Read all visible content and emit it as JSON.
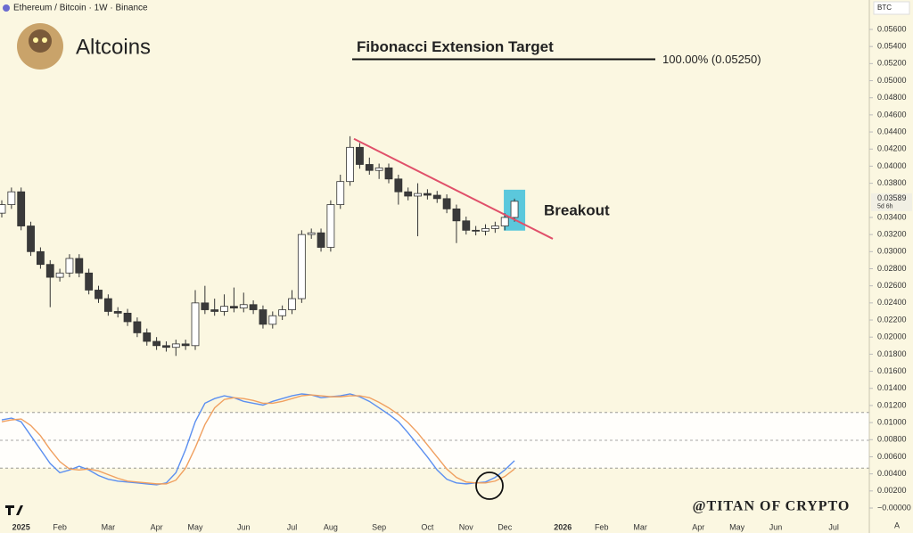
{
  "header": {
    "symbol": "Ethereum / Bitcoin · 1W · Binance",
    "title": "Altcoins",
    "currency": "BTC",
    "scale_mode": "A",
    "watermark": "@TITAN OF CRYPTO"
  },
  "chart_data": {
    "type": "candlestick",
    "annotations": {
      "fib_title": "Fibonacci Extension Target",
      "fib_level": {
        "value": 0.0525,
        "label": "100.00% (0.05250)"
      },
      "breakout": "Breakout",
      "trendline": {
        "values": [
          0.0432,
          0.0315
        ],
        "color": "#e0506a"
      },
      "breakout_color": "#5bc8dc"
    },
    "last_price": {
      "value": 0.03589,
      "label": "0.03589"
    },
    "countdown": "5d 6h",
    "categories": [
      null,
      null,
      "2025",
      null,
      null,
      null,
      "Feb",
      null,
      null,
      null,
      null,
      "Mar",
      null,
      null,
      null,
      null,
      "Apr",
      null,
      null,
      null,
      "May",
      null,
      null,
      null,
      null,
      "Jun",
      null,
      null,
      null,
      null,
      "Jul",
      null,
      null,
      null,
      "Aug",
      null,
      null,
      null,
      null,
      "Sep",
      null,
      null,
      null,
      null,
      "Oct",
      null,
      null,
      null,
      "Nov",
      null,
      null,
      null,
      "Dec",
      null,
      null,
      null,
      null,
      null,
      "2026",
      null,
      null,
      null,
      "Feb",
      null,
      null,
      null,
      "Mar",
      null,
      null,
      null,
      null,
      null,
      "Apr",
      null,
      null,
      null,
      "May",
      null,
      null,
      null,
      "Jun",
      null,
      null,
      null,
      null,
      null,
      "Jul"
    ],
    "open": [
      0.0345,
      0.0355,
      0.037,
      0.033,
      0.03,
      0.0285,
      0.027,
      0.0275,
      0.0292,
      0.0275,
      0.0255,
      0.0245,
      0.023,
      0.0228,
      0.0218,
      0.0205,
      0.0195,
      0.019,
      0.0188,
      0.0192,
      0.019,
      0.024,
      0.0232,
      0.023,
      0.0236,
      0.0234,
      0.0238,
      0.0232,
      0.0215,
      0.0225,
      0.0232,
      0.0245,
      0.032,
      0.0322,
      0.0305,
      0.0355,
      0.0382,
      0.0422,
      0.0402,
      0.0395,
      0.0398,
      0.0385,
      0.037,
      0.0365,
      0.0368,
      0.0366,
      0.0362,
      0.035,
      0.0336,
      0.0325,
      0.0324,
      0.0327,
      0.033,
      0.034,
      null,
      null,
      null,
      null,
      null,
      null,
      null,
      null,
      null,
      null,
      null,
      null,
      null,
      null,
      null,
      null,
      null,
      null,
      null,
      null,
      null,
      null,
      null,
      null,
      null,
      null,
      null,
      null,
      null,
      null,
      null,
      null,
      null
    ],
    "high": [
      0.036,
      0.0375,
      0.0375,
      0.0335,
      0.0305,
      0.029,
      0.028,
      0.0297,
      0.0297,
      0.028,
      0.026,
      0.025,
      0.0235,
      0.0233,
      0.0223,
      0.021,
      0.02,
      0.0195,
      0.0197,
      0.0197,
      0.0255,
      0.026,
      0.0245,
      0.025,
      0.0258,
      0.0252,
      0.0243,
      0.0237,
      0.023,
      0.0237,
      0.0255,
      0.0325,
      0.0327,
      0.0327,
      0.036,
      0.039,
      0.0435,
      0.0427,
      0.041,
      0.0403,
      0.0403,
      0.039,
      0.0375,
      0.038,
      0.0373,
      0.0371,
      0.0367,
      0.0355,
      0.0341,
      0.033,
      0.0332,
      0.0335,
      0.0345,
      0.0362,
      null,
      null,
      null,
      null,
      null,
      null,
      null,
      null,
      null,
      null,
      null,
      null,
      null,
      null,
      null,
      null,
      null,
      null,
      null,
      null,
      null,
      null,
      null,
      null,
      null,
      null,
      null,
      null,
      null,
      null,
      null,
      null,
      null
    ],
    "low": [
      0.034,
      0.035,
      0.0325,
      0.0295,
      0.028,
      0.0235,
      0.0265,
      0.027,
      0.027,
      0.025,
      0.024,
      0.0225,
      0.0223,
      0.0213,
      0.02,
      0.019,
      0.0185,
      0.0183,
      0.0178,
      0.0185,
      0.0185,
      0.0227,
      0.0225,
      0.0225,
      0.0229,
      0.0229,
      0.0227,
      0.021,
      0.021,
      0.022,
      0.0227,
      0.024,
      0.0315,
      0.03,
      0.03,
      0.035,
      0.0377,
      0.0397,
      0.039,
      0.0385,
      0.038,
      0.0355,
      0.036,
      0.0318,
      0.0361,
      0.0357,
      0.0345,
      0.031,
      0.032,
      0.0319,
      0.0319,
      0.0322,
      0.0325,
      0.0335,
      null,
      null,
      null,
      null,
      null,
      null,
      null,
      null,
      null,
      null,
      null,
      null,
      null,
      null,
      null,
      null,
      null,
      null,
      null,
      null,
      null,
      null,
      null,
      null,
      null,
      null,
      null,
      null,
      null,
      null,
      null,
      null,
      null
    ],
    "close": [
      0.0355,
      0.037,
      0.033,
      0.03,
      0.0285,
      0.027,
      0.0275,
      0.0292,
      0.0275,
      0.0255,
      0.0245,
      0.023,
      0.0228,
      0.0218,
      0.0205,
      0.0195,
      0.019,
      0.0188,
      0.0192,
      0.019,
      0.024,
      0.0232,
      0.023,
      0.0236,
      0.0234,
      0.0238,
      0.0232,
      0.0215,
      0.0225,
      0.0232,
      0.0245,
      0.032,
      0.0322,
      0.0305,
      0.0355,
      0.0382,
      0.0422,
      0.0402,
      0.0395,
      0.0398,
      0.0385,
      0.037,
      0.0365,
      0.0368,
      0.0366,
      0.0362,
      0.035,
      0.0336,
      0.0325,
      0.0324,
      0.0327,
      0.033,
      0.034,
      0.03589,
      null,
      null,
      null,
      null,
      null,
      null,
      null,
      null,
      null,
      null,
      null,
      null,
      null,
      null,
      null,
      null,
      null,
      null,
      null,
      null,
      null,
      null,
      null,
      null,
      null,
      null,
      null,
      null,
      null,
      null,
      null,
      null,
      null
    ],
    "up_color": "#ffffff",
    "down_color": "#3a3a3a",
    "ylim": [
      -0.00292,
      0.05944
    ],
    "yticks": [
      {
        "value": 0.056,
        "label": "0.05600"
      },
      {
        "value": 0.054,
        "label": "0.05400"
      },
      {
        "value": 0.052,
        "label": "0.05200"
      },
      {
        "value": 0.05,
        "label": "0.05000"
      },
      {
        "value": 0.048,
        "label": "0.04800"
      },
      {
        "value": 0.046,
        "label": "0.04600"
      },
      {
        "value": 0.044,
        "label": "0.04400"
      },
      {
        "value": 0.042,
        "label": "0.04200"
      },
      {
        "value": 0.04,
        "label": "0.04000"
      },
      {
        "value": 0.038,
        "label": "0.03800"
      },
      {
        "value": 0.034,
        "label": "0.03400"
      },
      {
        "value": 0.032,
        "label": "0.03200"
      },
      {
        "value": 0.03,
        "label": "0.03000"
      },
      {
        "value": 0.028,
        "label": "0.02800"
      },
      {
        "value": 0.026,
        "label": "0.02600"
      },
      {
        "value": 0.024,
        "label": "0.02400"
      },
      {
        "value": 0.022,
        "label": "0.02200"
      },
      {
        "value": 0.02,
        "label": "0.02000"
      },
      {
        "value": 0.018,
        "label": "0.01800"
      },
      {
        "value": 0.016,
        "label": "0.01600"
      },
      {
        "value": 0.014,
        "label": "0.01400"
      },
      {
        "value": 0.012,
        "label": "0.01200"
      },
      {
        "value": 0.01,
        "label": "0.01000"
      },
      {
        "value": 0.008,
        "label": "0.00800"
      },
      {
        "value": 0.006,
        "label": "0.00600"
      },
      {
        "value": 0.004,
        "label": "0.00400"
      },
      {
        "value": 0.002,
        "label": "0.00200"
      },
      {
        "value": 0,
        "label": "−0.00000"
      }
    ],
    "oscillator": {
      "ylim": [
        0,
        100
      ],
      "levels": [
        80,
        50,
        20
      ],
      "series": [
        {
          "color": "#5b8ff0",
          "values": [
            72,
            74,
            70,
            55,
            40,
            25,
            15,
            18,
            22,
            18,
            12,
            8,
            6,
            5,
            4,
            3,
            2,
            4,
            15,
            40,
            70,
            90,
            95,
            98,
            96,
            92,
            90,
            88,
            92,
            95,
            98,
            100,
            99,
            96,
            97,
            98,
            100,
            97,
            92,
            85,
            78,
            70,
            58,
            45,
            32,
            18,
            8,
            4,
            3,
            4,
            5,
            10,
            18,
            28,
            null,
            null,
            null,
            null,
            null,
            null,
            null,
            null,
            null,
            null,
            null,
            null,
            null,
            null,
            null,
            null,
            null,
            null,
            null,
            null,
            null,
            null,
            null,
            null,
            null,
            null,
            null,
            null,
            null,
            null,
            null,
            null,
            null
          ]
        },
        {
          "color": "#f0a060",
          "values": [
            70,
            72,
            73,
            66,
            55,
            40,
            27,
            19,
            18,
            19,
            17,
            13,
            9,
            6,
            5,
            4,
            3,
            3,
            7,
            20,
            42,
            67,
            85,
            94,
            96,
            95,
            93,
            90,
            90,
            92,
            95,
            98,
            99,
            98,
            97,
            97,
            98,
            98,
            96,
            91,
            85,
            78,
            69,
            58,
            45,
            32,
            19,
            10,
            5,
            4,
            4,
            6,
            11,
            19,
            null,
            null,
            null,
            null,
            null,
            null,
            null,
            null,
            null,
            null,
            null,
            null,
            null,
            null,
            null,
            null,
            null,
            null,
            null,
            null,
            null,
            null,
            null,
            null,
            null,
            null,
            null,
            null,
            null,
            null,
            null,
            null,
            null
          ]
        }
      ]
    }
  }
}
